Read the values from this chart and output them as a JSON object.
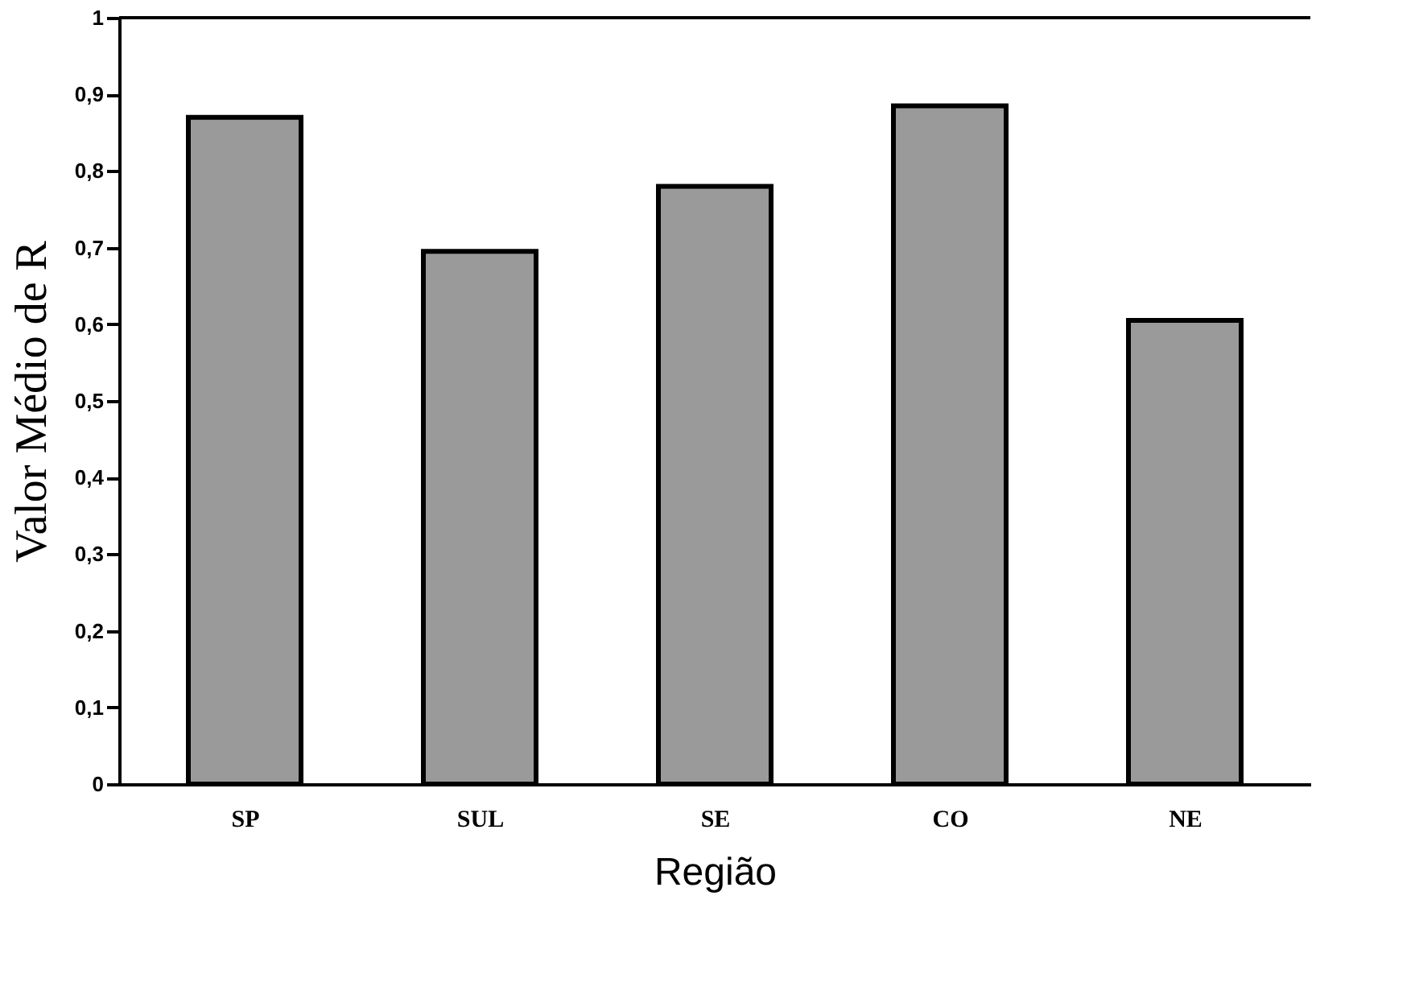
{
  "chart_data": {
    "type": "bar",
    "xlabel": "Região",
    "ylabel": "Valor Médio de R",
    "categories": [
      "SP",
      "SUL",
      "SE",
      "CO",
      "NE"
    ],
    "values": [
      0.87,
      0.695,
      0.78,
      0.885,
      0.605
    ],
    "color": "#9a9a9a",
    "ylim": [
      0,
      1
    ],
    "yticks": [
      0,
      {
        "value": 0.1,
        "label": "0,1"
      },
      {
        "value": 0.2,
        "label": "0,2"
      },
      {
        "value": 0.3,
        "label": "0,3"
      },
      {
        "value": 0.4,
        "label": "0,4"
      },
      {
        "value": 0.5,
        "label": "0,5"
      },
      {
        "value": 0.6,
        "label": "0,6"
      },
      {
        "value": 0.7,
        "label": "0,7"
      },
      {
        "value": 0.8,
        "label": "0,8"
      },
      {
        "value": 0.9,
        "label": "0,9"
      },
      1
    ],
    "grid": false
  }
}
